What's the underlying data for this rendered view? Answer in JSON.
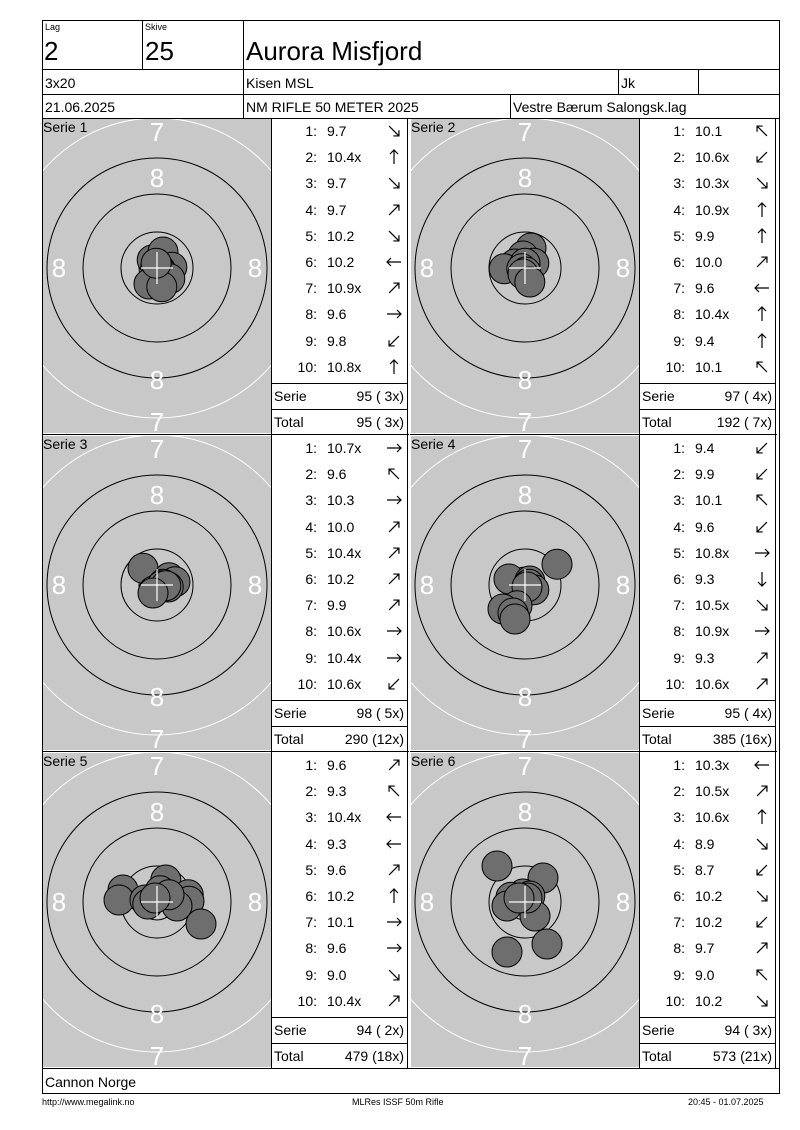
{
  "header": {
    "lag_label": "Lag",
    "lag_value": "2",
    "skive_label": "Skive",
    "skive_value": "25",
    "shooter_name": "Aurora Misfjord",
    "discipline": "3x20",
    "club_short": "Kisen MSL",
    "class": "Jk",
    "date": "21.06.2025",
    "event": "NM RIFLE 50 METER 2025",
    "club_full": "Vestre Bærum Salongsk.lag"
  },
  "ring_labels": {
    "seven": "7",
    "eight": "8"
  },
  "labels": {
    "serie": "Serie",
    "total": "Total"
  },
  "series": [
    {
      "title": "Serie 1",
      "shots": [
        {
          "n": "1:",
          "v": "9.7",
          "dir": "se"
        },
        {
          "n": "2:",
          "v": "10.4x",
          "dir": "n"
        },
        {
          "n": "3:",
          "v": "9.7",
          "dir": "se"
        },
        {
          "n": "4:",
          "v": "9.7",
          "dir": "ne"
        },
        {
          "n": "5:",
          "v": "10.2",
          "dir": "se"
        },
        {
          "n": "6:",
          "v": "10.2",
          "dir": "w"
        },
        {
          "n": "7:",
          "v": "10.9x",
          "dir": "ne"
        },
        {
          "n": "8:",
          "v": "9.6",
          "dir": "e"
        },
        {
          "n": "9:",
          "v": "9.8",
          "dir": "sw"
        },
        {
          "n": "10:",
          "v": "10.8x",
          "dir": "n"
        }
      ],
      "serie_sum": "95 ( 3x)",
      "total_sum": "95 ( 3x)",
      "holes": [
        [
          -0.12,
          0.2
        ],
        [
          0.15,
          0.4
        ],
        [
          -0.03,
          0.02
        ],
        [
          0.37,
          0.02
        ],
        [
          0.15,
          -0.2
        ],
        [
          0.08,
          -0.04
        ],
        [
          0.15,
          -0.15
        ],
        [
          0.32,
          -0.27
        ],
        [
          -0.2,
          -0.4
        ],
        [
          0.12,
          -0.47
        ],
        [
          -0.02,
          0.12
        ]
      ]
    },
    {
      "title": "Serie 2",
      "shots": [
        {
          "n": "1:",
          "v": "10.1",
          "dir": "nw"
        },
        {
          "n": "2:",
          "v": "10.6x",
          "dir": "sw"
        },
        {
          "n": "3:",
          "v": "10.3x",
          "dir": "se"
        },
        {
          "n": "4:",
          "v": "10.9x",
          "dir": "n"
        },
        {
          "n": "5:",
          "v": "9.9",
          "dir": "n"
        },
        {
          "n": "6:",
          "v": "10.0",
          "dir": "ne"
        },
        {
          "n": "7:",
          "v": "9.6",
          "dir": "w"
        },
        {
          "n": "8:",
          "v": "10.4x",
          "dir": "n"
        },
        {
          "n": "9:",
          "v": "9.4",
          "dir": "n"
        },
        {
          "n": "10:",
          "v": "10.1",
          "dir": "nw"
        }
      ],
      "serie_sum": "97 ( 4x)",
      "total_sum": "192 ( 7x)",
      "holes": [
        [
          0.15,
          0.5
        ],
        [
          -0.05,
          0.3
        ],
        [
          0.22,
          0.12
        ],
        [
          -0.25,
          0.1
        ],
        [
          -0.52,
          -0.02
        ],
        [
          0.0,
          0.12
        ],
        [
          -0.08,
          -0.02
        ],
        [
          0.02,
          -0.1
        ],
        [
          -0.05,
          -0.15
        ],
        [
          0.12,
          -0.35
        ]
      ]
    },
    {
      "title": "Serie 3",
      "shots": [
        {
          "n": "1:",
          "v": "10.7x",
          "dir": "e"
        },
        {
          "n": "2:",
          "v": "9.6",
          "dir": "nw"
        },
        {
          "n": "3:",
          "v": "10.3",
          "dir": "e"
        },
        {
          "n": "4:",
          "v": "10.0",
          "dir": "ne"
        },
        {
          "n": "5:",
          "v": "10.4x",
          "dir": "ne"
        },
        {
          "n": "6:",
          "v": "10.2",
          "dir": "ne"
        },
        {
          "n": "7:",
          "v": "9.9",
          "dir": "ne"
        },
        {
          "n": "8:",
          "v": "10.6x",
          "dir": "e"
        },
        {
          "n": "9:",
          "v": "10.4x",
          "dir": "e"
        },
        {
          "n": "10:",
          "v": "10.6x",
          "dir": "sw"
        }
      ],
      "serie_sum": "98 ( 5x)",
      "total_sum": "290 (12x)",
      "holes": [
        [
          -0.35,
          0.42
        ],
        [
          0.3,
          0.18
        ],
        [
          0.45,
          0.08
        ],
        [
          0.15,
          0.02
        ],
        [
          0.28,
          -0.05
        ],
        [
          0.05,
          -0.08
        ],
        [
          -0.08,
          -0.15
        ],
        [
          0.12,
          -0.02
        ],
        [
          0.22,
          -0.02
        ],
        [
          -0.1,
          -0.2
        ]
      ]
    },
    {
      "title": "Serie 4",
      "shots": [
        {
          "n": "1:",
          "v": "9.4",
          "dir": "sw"
        },
        {
          "n": "2:",
          "v": "9.9",
          "dir": "sw"
        },
        {
          "n": "3:",
          "v": "10.1",
          "dir": "nw"
        },
        {
          "n": "4:",
          "v": "9.6",
          "dir": "sw"
        },
        {
          "n": "5:",
          "v": "10.8x",
          "dir": "e"
        },
        {
          "n": "6:",
          "v": "9.3",
          "dir": "s"
        },
        {
          "n": "7:",
          "v": "10.5x",
          "dir": "se"
        },
        {
          "n": "8:",
          "v": "10.9x",
          "dir": "e"
        },
        {
          "n": "9:",
          "v": "9.3",
          "dir": "ne"
        },
        {
          "n": "10:",
          "v": "10.6x",
          "dir": "ne"
        }
      ],
      "serie_sum": "95 ( 4x)",
      "total_sum": "385 (16x)",
      "holes": [
        [
          0.8,
          0.52
        ],
        [
          -0.4,
          0.15
        ],
        [
          0.12,
          0.1
        ],
        [
          0.1,
          0.02
        ],
        [
          0.22,
          -0.12
        ],
        [
          0.05,
          -0.05
        ],
        [
          -0.2,
          -0.52
        ],
        [
          -0.55,
          -0.6
        ],
        [
          -0.3,
          -0.7
        ],
        [
          -0.25,
          -0.85
        ]
      ]
    },
    {
      "title": "Serie 5",
      "shots": [
        {
          "n": "1:",
          "v": "9.6",
          "dir": "ne"
        },
        {
          "n": "2:",
          "v": "9.3",
          "dir": "nw"
        },
        {
          "n": "3:",
          "v": "10.4x",
          "dir": "w"
        },
        {
          "n": "4:",
          "v": "9.3",
          "dir": "w"
        },
        {
          "n": "5:",
          "v": "9.6",
          "dir": "ne"
        },
        {
          "n": "6:",
          "v": "10.2",
          "dir": "n"
        },
        {
          "n": "7:",
          "v": "10.1",
          "dir": "e"
        },
        {
          "n": "8:",
          "v": "9.6",
          "dir": "e"
        },
        {
          "n": "9:",
          "v": "9.0",
          "dir": "se"
        },
        {
          "n": "10:",
          "v": "10.4x",
          "dir": "ne"
        }
      ],
      "serie_sum": "94 ( 2x)",
      "total_sum": "479 (18x)",
      "holes": [
        [
          0.22,
          0.55
        ],
        [
          0.08,
          0.28
        ],
        [
          -0.85,
          0.3
        ],
        [
          -0.95,
          0.05
        ],
        [
          -0.3,
          0.05
        ],
        [
          0.78,
          0.18
        ],
        [
          0.8,
          0.02
        ],
        [
          0.5,
          -0.1
        ],
        [
          -0.23,
          -0.05
        ],
        [
          1.1,
          -0.55
        ],
        [
          0.3,
          0.18
        ],
        [
          -0.05,
          0.1
        ]
      ]
    },
    {
      "title": "Serie 6",
      "shots": [
        {
          "n": "1:",
          "v": "10.3x",
          "dir": "w"
        },
        {
          "n": "2:",
          "v": "10.5x",
          "dir": "ne"
        },
        {
          "n": "3:",
          "v": "10.6x",
          "dir": "n"
        },
        {
          "n": "4:",
          "v": "8.9",
          "dir": "se"
        },
        {
          "n": "5:",
          "v": "8.7",
          "dir": "sw"
        },
        {
          "n": "6:",
          "v": "10.2",
          "dir": "se"
        },
        {
          "n": "7:",
          "v": "10.2",
          "dir": "sw"
        },
        {
          "n": "8:",
          "v": "9.7",
          "dir": "ne"
        },
        {
          "n": "9:",
          "v": "9.0",
          "dir": "nw"
        },
        {
          "n": "10:",
          "v": "10.2",
          "dir": "se"
        }
      ],
      "serie_sum": "94 ( 3x)",
      "total_sum": "573 (21x)",
      "holes": [
        [
          -0.7,
          0.9
        ],
        [
          0.45,
          0.6
        ],
        [
          -0.05,
          0.2
        ],
        [
          0.12,
          0.15
        ],
        [
          -0.35,
          0.12
        ],
        [
          -0.45,
          -0.1
        ],
        [
          0.25,
          -0.35
        ],
        [
          0.05,
          0.1
        ],
        [
          -0.15,
          0.1
        ],
        [
          -0.45,
          -1.25
        ],
        [
          0.55,
          -1.05
        ]
      ]
    }
  ],
  "footer": {
    "sponsor": "Cannon Norge",
    "url": "http://www.megalink.no",
    "software": "MLRes ISSF 50m Rifle",
    "printed": "20:45 - 01.07.2025"
  }
}
